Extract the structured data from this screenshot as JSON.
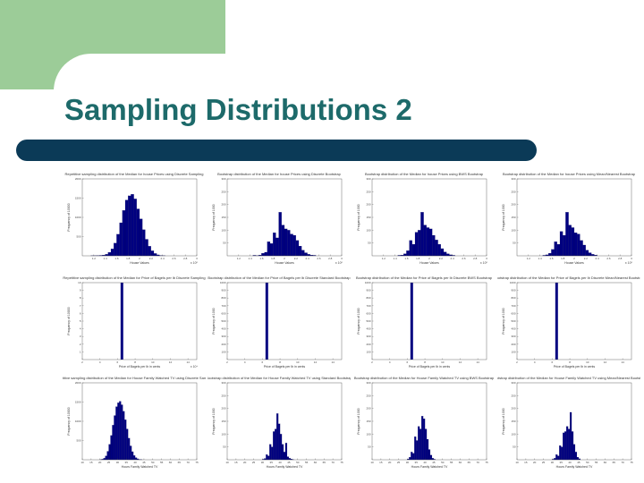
{
  "slide": {
    "title": "Sampling Distributions 2",
    "colors": {
      "green_block": "#9ccc98",
      "title_text": "#1d6a6a",
      "title_bar": "#0b3a57",
      "bar_fill": "#000080"
    }
  },
  "chart_data": [
    {
      "type": "bar",
      "title": "Repetitive sampling distribution of the Median for house Prices using Discrete Sampling",
      "xlabel": "House Values",
      "ylabel": "Frequency of 10000",
      "xlim": [
        1,
        3
      ],
      "ylim": [
        0,
        2000
      ],
      "xticks": [
        "1.2",
        "1.4",
        "1.6",
        "1.8",
        "2",
        "2.2",
        "2.4",
        "2.6",
        "2.8",
        "3"
      ],
      "yticks": [
        "500",
        "1000",
        "1500",
        "2000"
      ],
      "x_multiplier": "x 10⁵",
      "bin_start": 1.15,
      "bin_width": 0.05,
      "values": [
        3,
        5,
        8,
        12,
        20,
        40,
        90,
        180,
        330,
        560,
        860,
        1180,
        1450,
        1560,
        1600,
        1480,
        1220,
        960,
        680,
        430,
        250,
        130,
        60,
        25,
        10,
        4
      ]
    },
    {
      "type": "bar",
      "title": "Bootstrap distribution of the Median for house Prices using Discrete Bootstrap",
      "xlabel": "House Values",
      "ylabel": "Frequency of 1000",
      "xlim": [
        1,
        3
      ],
      "ylim": [
        0,
        300
      ],
      "xticks": [
        "1.2",
        "1.4",
        "1.6",
        "1.8",
        "2",
        "2.2",
        "2.4",
        "2.6",
        "2.8",
        "3"
      ],
      "yticks": [
        "50",
        "100",
        "150",
        "200",
        "250",
        "300"
      ],
      "x_multiplier": "x 10⁵",
      "bin_start": 1.45,
      "bin_width": 0.05,
      "values": [
        2,
        1,
        3,
        10,
        14,
        55,
        48,
        90,
        70,
        170,
        120,
        105,
        100,
        85,
        80,
        60,
        38,
        22,
        12,
        6,
        3,
        2
      ]
    },
    {
      "type": "bar",
      "title": "Bootstrap distribution of the Median for house Prices using BWS Bootstrap",
      "xlabel": "House Values",
      "ylabel": "Frequency of 1000",
      "xlim": [
        1,
        3
      ],
      "ylim": [
        0,
        300
      ],
      "xticks": [
        "1.2",
        "1.4",
        "1.6",
        "1.8",
        "2",
        "2.2",
        "2.4",
        "2.6",
        "2.8",
        "3"
      ],
      "yticks": [
        "50",
        "100",
        "150",
        "200",
        "250",
        "300"
      ],
      "x_multiplier": "x 10⁵",
      "bin_start": 1.45,
      "bin_width": 0.05,
      "values": [
        2,
        3,
        8,
        20,
        60,
        45,
        92,
        100,
        170,
        120,
        110,
        105,
        80,
        62,
        45,
        28,
        15,
        8,
        4,
        2
      ]
    },
    {
      "type": "bar",
      "title": "Bootstrap distribution of the Median for house Prices using Mean/Nearest Bootstrap",
      "xlabel": "House Values",
      "ylabel": "Frequency of 1000",
      "xlim": [
        1,
        3
      ],
      "ylim": [
        0,
        300
      ],
      "xticks": [
        "1.2",
        "1.4",
        "1.6",
        "1.8",
        "2",
        "2.2",
        "2.4",
        "2.6",
        "2.8",
        "3"
      ],
      "yticks": [
        "50",
        "100",
        "150",
        "200",
        "250",
        "300"
      ],
      "x_multiplier": "x 10⁵",
      "bin_start": 1.45,
      "bin_width": 0.05,
      "values": [
        2,
        4,
        10,
        25,
        55,
        45,
        95,
        80,
        170,
        120,
        110,
        90,
        85,
        60,
        42,
        22,
        12,
        6,
        3
      ]
    },
    {
      "type": "bar",
      "title": "Repetitive sampling distribution of the Median for Price of Bagels per lb Discrete Sampling",
      "xlabel": "Price of Bagels per lb in cents",
      "ylabel": "Frequency of 10000",
      "xlim": [
        2,
        15
      ],
      "ylim": [
        0,
        10
      ],
      "xticks": [
        "2",
        "4",
        "6",
        "8",
        "10",
        "12",
        "14",
        "16"
      ],
      "yticks": [
        "1",
        "2",
        "3",
        "4",
        "5",
        "6",
        "7",
        "8",
        "9",
        "10"
      ],
      "x_multiplier": "x 10⁴",
      "spike_x": 6.5,
      "spike_value": 10,
      "spike_width": 0.3
    },
    {
      "type": "bar",
      "title": "Bootstrap distribution of the Median for Price of Bagels per lb Discrete Standard Bootstrap",
      "xlabel": "Price of Bagels per lb in cents",
      "ylabel": "Frequency of 1000",
      "xlim": [
        2,
        15
      ],
      "ylim": [
        0,
        1000
      ],
      "xticks": [
        "2",
        "4",
        "6",
        "8",
        "10",
        "12",
        "14",
        "16"
      ],
      "yticks": [
        "100",
        "200",
        "300",
        "400",
        "500",
        "600",
        "700",
        "800",
        "900",
        "1000"
      ],
      "spike_x": 6.5,
      "spike_value": 1000,
      "spike_width": 0.3
    },
    {
      "type": "bar",
      "title": "Bootstrap distribution of the Median for Price of Bagels per lb Discrete BWS Bootstrap",
      "xlabel": "Price of Bagels per lb in cents",
      "ylabel": "Frequency of 1000",
      "xlim": [
        2,
        15
      ],
      "ylim": [
        0,
        1000
      ],
      "xticks": [
        "2",
        "4",
        "6",
        "8",
        "10",
        "12",
        "14",
        "16"
      ],
      "yticks": [
        "100",
        "200",
        "300",
        "400",
        "500",
        "600",
        "700",
        "800",
        "900",
        "1000"
      ],
      "spike_x": 6.5,
      "spike_value": 1000,
      "spike_width": 0.3
    },
    {
      "type": "bar",
      "title": "Bootstrap distribution of the Median for Price of Bagels per lb Discrete Mean/Nearest Bootstrap",
      "xlabel": "Price of Bagels per lb in cents",
      "ylabel": "Frequency of 1000",
      "xlim": [
        2,
        15
      ],
      "ylim": [
        0,
        1000
      ],
      "xticks": [
        "2",
        "4",
        "6",
        "8",
        "10",
        "12",
        "14",
        "16"
      ],
      "yticks": [
        "100",
        "200",
        "300",
        "400",
        "500",
        "600",
        "700",
        "800",
        "900",
        "1000"
      ],
      "spike_x": 6.5,
      "spike_value": 1000,
      "spike_width": 0.3
    },
    {
      "type": "bar",
      "title": "Repetitive sampling distribution of the Median for House Family Watched TV using Discrete Sampling",
      "xlabel": "Hours Family Watched TV",
      "ylabel": "Frequency of 10000",
      "xlim": [
        10,
        75
      ],
      "ylim": [
        0,
        2000
      ],
      "xticks": [
        "10",
        "15",
        "20",
        "25",
        "30",
        "35",
        "40",
        "45",
        "50",
        "55",
        "60",
        "65",
        "70",
        "75"
      ],
      "yticks": [
        "500",
        "1000",
        "1500",
        "2000"
      ],
      "bin_start": 20,
      "bin_width": 1,
      "values": [
        5,
        15,
        40,
        100,
        220,
        400,
        630,
        900,
        1150,
        1380,
        1480,
        1520,
        1430,
        1260,
        1040,
        800,
        560,
        360,
        210,
        110,
        55,
        25,
        10,
        4
      ]
    },
    {
      "type": "bar",
      "title": "Bootstrap distribution of the Median for House Family Watched TV using Standard Bootstrap",
      "xlabel": "Hours Family Watched TV",
      "ylabel": "Frequency of 1000",
      "xlim": [
        10,
        75
      ],
      "ylim": [
        0,
        300
      ],
      "xticks": [
        "10",
        "15",
        "20",
        "25",
        "30",
        "35",
        "40",
        "45",
        "50",
        "55",
        "60",
        "65",
        "70",
        "75"
      ],
      "yticks": [
        "50",
        "100",
        "150",
        "200",
        "250",
        "300"
      ],
      "bin_start": 30,
      "bin_width": 1,
      "values": [
        2,
        5,
        20,
        15,
        60,
        50,
        110,
        120,
        180,
        140,
        100,
        60,
        30,
        65,
        12,
        6,
        3,
        1
      ]
    },
    {
      "type": "bar",
      "title": "Bootstrap distribution of the Median for House Family Watched TV using BWS Bootstrap",
      "xlabel": "Hours Family Watched TV",
      "ylabel": "Frequency of 1000",
      "xlim": [
        10,
        75
      ],
      "ylim": [
        0,
        300
      ],
      "xticks": [
        "10",
        "15",
        "20",
        "25",
        "30",
        "35",
        "40",
        "45",
        "50",
        "55",
        "60",
        "65",
        "70",
        "75"
      ],
      "yticks": [
        "50",
        "100",
        "150",
        "200",
        "250",
        "300"
      ],
      "bin_start": 30,
      "bin_width": 1,
      "values": [
        3,
        10,
        30,
        25,
        90,
        75,
        130,
        120,
        170,
        160,
        120,
        80,
        40,
        18,
        6,
        2
      ]
    },
    {
      "type": "bar",
      "title": "Bootstrap distribution of the Median for House Family Watched TV using Mean/Nearest Bootstrap",
      "xlabel": "Hours Family Watched TV",
      "ylabel": "Frequency of 1000",
      "xlim": [
        10,
        75
      ],
      "ylim": [
        0,
        300
      ],
      "xticks": [
        "10",
        "15",
        "20",
        "25",
        "30",
        "35",
        "40",
        "45",
        "50",
        "55",
        "60",
        "65",
        "70",
        "75"
      ],
      "yticks": [
        "50",
        "100",
        "150",
        "200",
        "250",
        "300"
      ],
      "bin_start": 30,
      "bin_width": 1,
      "values": [
        2,
        6,
        20,
        15,
        55,
        50,
        105,
        110,
        130,
        120,
        185,
        110,
        60,
        30,
        10,
        4
      ]
    }
  ]
}
